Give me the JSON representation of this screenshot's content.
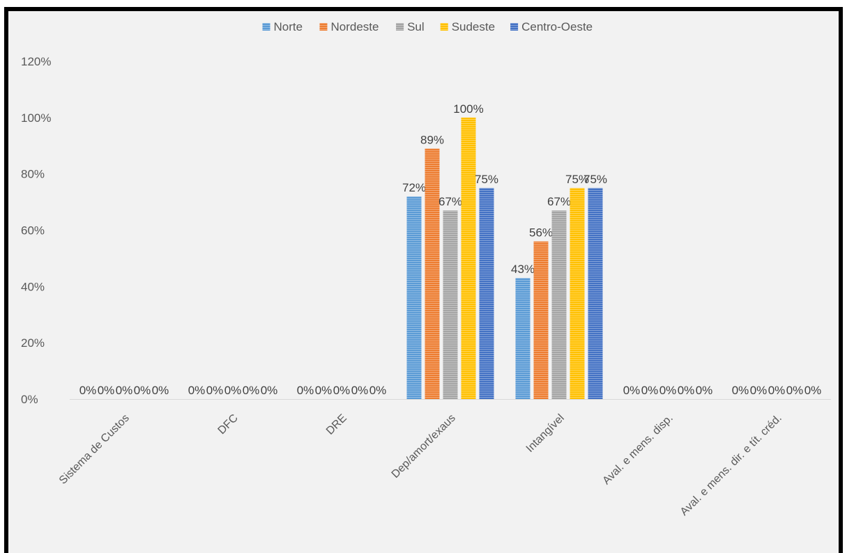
{
  "chart_data": {
    "type": "bar",
    "title": "",
    "xlabel": "",
    "ylabel": "",
    "categories": [
      "Sistema de Custos",
      "DFC",
      "DRE",
      "Dep/amort/exaus",
      "Intangível",
      "Aval. e mens. disp.",
      "Aval. e mens. dir. e tít. créd."
    ],
    "series": [
      {
        "name": "Norte",
        "color": "#5b9bd5",
        "values": [
          0,
          0,
          0,
          72,
          43,
          0,
          0
        ],
        "labels": [
          "0%",
          "0%",
          "0%",
          "72%",
          "43%",
          "0%",
          "0%"
        ]
      },
      {
        "name": "Nordeste",
        "color": "#ed7d31",
        "values": [
          0,
          0,
          0,
          89,
          56,
          0,
          0
        ],
        "labels": [
          "0%",
          "0%",
          "0%",
          "89%",
          "56%",
          "0%",
          "0%"
        ]
      },
      {
        "name": "Sul",
        "color": "#a5a5a5",
        "values": [
          0,
          0,
          0,
          67,
          67,
          0,
          0
        ],
        "labels": [
          "0%",
          "0%",
          "0%",
          "67%",
          "67%",
          "0%",
          "0%"
        ]
      },
      {
        "name": "Sudeste",
        "color": "#ffc000",
        "values": [
          0,
          0,
          0,
          100,
          75,
          0,
          0
        ],
        "labels": [
          "0%",
          "0%",
          "0%",
          "100%",
          "75%",
          "0%",
          "0%"
        ]
      },
      {
        "name": "Centro-Oeste",
        "color": "#4472c4",
        "values": [
          0,
          0,
          0,
          75,
          75,
          0,
          0
        ],
        "labels": [
          "0%",
          "0%",
          "0%",
          "75%",
          "75%",
          "0%",
          "0%"
        ]
      }
    ],
    "ylim": [
      0,
      120
    ],
    "yticks": [
      0,
      20,
      40,
      60,
      80,
      100,
      120
    ],
    "ytick_labels": [
      "0%",
      "20%",
      "40%",
      "60%",
      "80%",
      "100%",
      "120%"
    ],
    "grid": false,
    "legend_position": "top-center"
  }
}
